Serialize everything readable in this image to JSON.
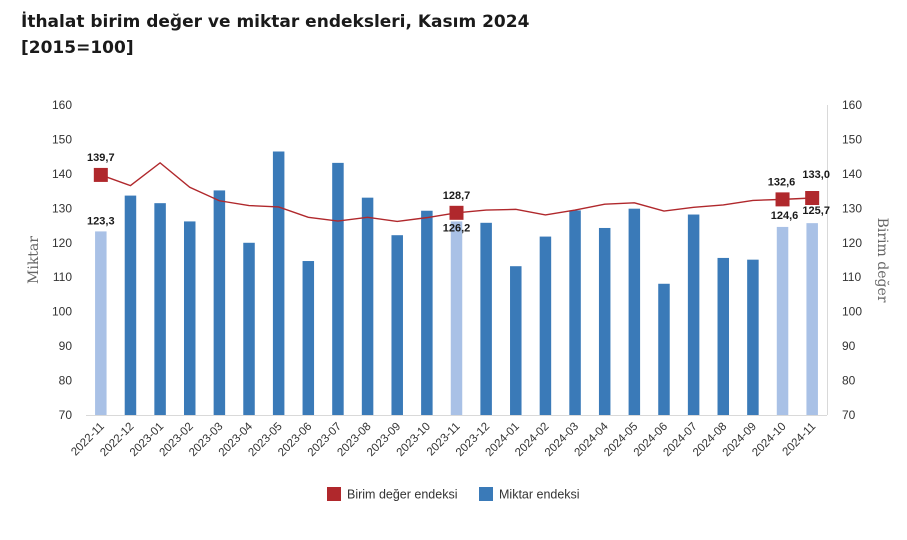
{
  "title": {
    "line1": "İthalat birim değer ve miktar endeksleri, Kasım 2024",
    "line2": "[2015=100]"
  },
  "colors": {
    "bar_main": "#3a7ab8",
    "bar_highlight": "#a9c1e6",
    "line": "#b0282c",
    "marker": "#b0282c"
  },
  "chart_data": {
    "type": "bar",
    "categories": [
      "2022-11",
      "2022-12",
      "2023-01",
      "2023-02",
      "2023-03",
      "2023-04",
      "2023-05",
      "2023-06",
      "2023-07",
      "2023-08",
      "2023-09",
      "2023-10",
      "2023-11",
      "2023-12",
      "2024-01",
      "2024-02",
      "2024-03",
      "2024-04",
      "2024-05",
      "2024-06",
      "2024-07",
      "2024-08",
      "2024-09",
      "2024-10",
      "2024-11"
    ],
    "series": [
      {
        "name": "Miktar endeksi",
        "type": "bar",
        "axis": "left",
        "values": [
          123.3,
          133.7,
          131.5,
          126.2,
          135.2,
          120.0,
          146.5,
          114.7,
          143.2,
          133.1,
          122.2,
          129.3,
          126.2,
          125.8,
          113.2,
          121.8,
          129.4,
          124.3,
          129.9,
          108.1,
          128.2,
          115.6,
          115.1,
          124.6,
          125.7
        ],
        "highlighted": [
          0,
          12,
          23,
          24
        ]
      },
      {
        "name": "Birim değer endeksi",
        "type": "line",
        "axis": "right",
        "values": [
          139.7,
          136.6,
          143.2,
          136.1,
          132.2,
          130.8,
          130.4,
          127.4,
          126.3,
          127.4,
          126.2,
          127.3,
          128.7,
          129.5,
          129.7,
          128.1,
          129.5,
          131.2,
          131.6,
          129.2,
          130.3,
          131.0,
          132.3,
          132.6,
          133.0
        ],
        "markers": [
          0,
          12,
          23,
          24
        ]
      }
    ],
    "data_labels": {
      "bars": [
        {
          "index": 0,
          "text": "123,3"
        },
        {
          "index": 12,
          "text": "126,2"
        },
        {
          "index": 23,
          "text": "124,6"
        },
        {
          "index": 24,
          "text": "125,7"
        }
      ],
      "line": [
        {
          "index": 0,
          "text": "139,7"
        },
        {
          "index": 12,
          "text": "128,7"
        },
        {
          "index": 23,
          "text": "132,6"
        },
        {
          "index": 24,
          "text": "133,0"
        }
      ]
    },
    "ylabel": "Miktar",
    "y2label": "Birim değer",
    "ylim": [
      70,
      160
    ],
    "y2lim": [
      70,
      160
    ],
    "yticks": [
      "160",
      "150",
      "140",
      "130",
      "120",
      "110",
      "100",
      "90",
      "80",
      "70"
    ],
    "legend": [
      "Birim değer endeksi",
      "Miktar endeksi"
    ],
    "legend_position": "bottom",
    "grid": false
  }
}
